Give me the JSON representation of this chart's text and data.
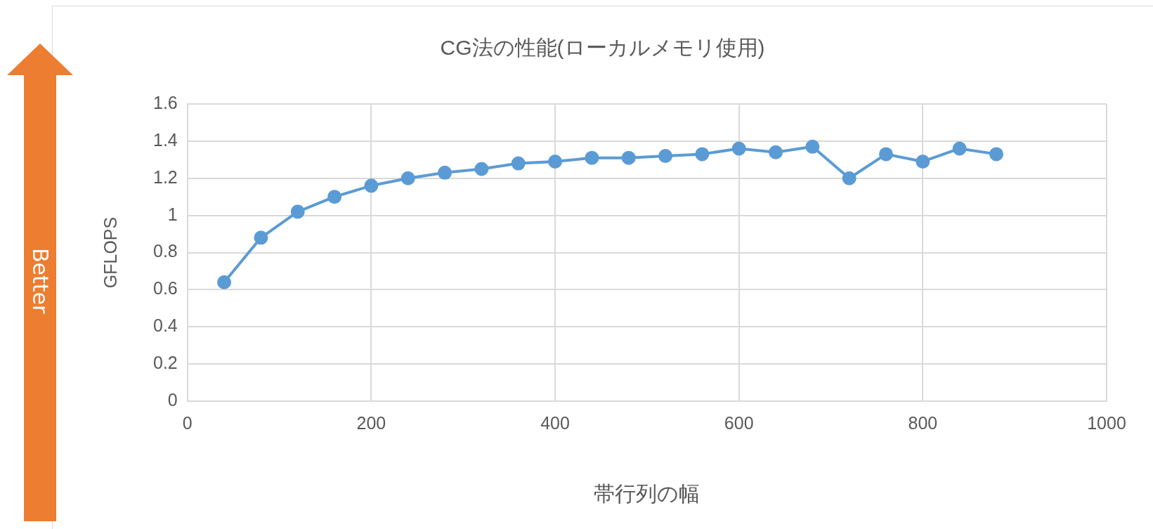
{
  "chart_data": {
    "type": "line",
    "title": "CG法の性能(ローカルメモリ使用)",
    "xlabel": "帯行列の幅",
    "ylabel": "GFLOPS",
    "annotations": [
      "Better"
    ],
    "x": [
      40,
      80,
      120,
      160,
      200,
      240,
      280,
      320,
      360,
      400,
      440,
      480,
      520,
      560,
      600,
      640,
      680,
      720,
      760,
      800,
      840,
      880
    ],
    "series": [
      {
        "color": "#5b9bd5",
        "values": [
          0.64,
          0.88,
          1.02,
          1.1,
          1.16,
          1.2,
          1.23,
          1.25,
          1.28,
          1.29,
          1.31,
          1.31,
          1.32,
          1.33,
          1.36,
          1.34,
          1.37,
          1.2,
          1.33,
          1.29,
          1.36,
          1.33
        ]
      }
    ],
    "xlim": [
      0,
      1000
    ],
    "xticks": [
      0,
      200,
      400,
      600,
      800,
      1000
    ],
    "ylim": [
      0,
      1.6
    ],
    "yticks": [
      0,
      0.2,
      0.4,
      0.6,
      0.8,
      1,
      1.2,
      1.4,
      1.6
    ],
    "grid": true,
    "legend": false,
    "marker": "circle",
    "line_style": "solid"
  }
}
